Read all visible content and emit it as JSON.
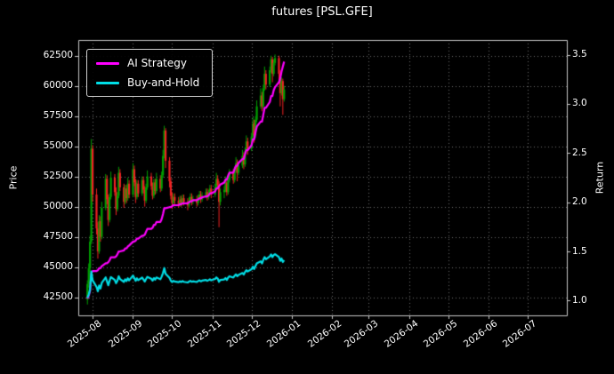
{
  "chart_data": {
    "type": "candlestick",
    "title": "futures [PSL.GFE]",
    "ylabel_left": "Price",
    "ylabel_right": "Return",
    "grid": true,
    "legend_position": "upper-left",
    "colors": {
      "background": "#000000",
      "text": "#ffffff",
      "grid": "#7a7a7a",
      "frame": "#c8c8c8",
      "up": "#00a000",
      "down": "#ee2222",
      "strategy": "#ff00ff",
      "buyhold": "#00dde5"
    },
    "price_ticks": [
      42500,
      45000,
      47500,
      50000,
      52500,
      55000,
      57500,
      60000,
      62500
    ],
    "price_range": [
      41000,
      63800
    ],
    "return_ticks": [
      "1.0",
      "1.5",
      "2.0",
      "2.5",
      "3.0",
      "3.5"
    ],
    "return_range": [
      0.85,
      3.65
    ],
    "x_tick_labels": [
      "2025-08",
      "2025-09",
      "2025-10",
      "2025-11",
      "2025-12",
      "2026-01",
      "2026-02",
      "2026-03",
      "2026-04",
      "2026-05",
      "2026-06",
      "2026-07"
    ],
    "x_tick_days": [
      11,
      42,
      72,
      103,
      133,
      164,
      195,
      223,
      254,
      284,
      315,
      345
    ],
    "x_range": [
      0,
      375
    ],
    "day_zero_date": "2025-07-21",
    "days": [
      7,
      8,
      9,
      10,
      11,
      14,
      15,
      16,
      17,
      18,
      21,
      22,
      23,
      24,
      25,
      28,
      29,
      30,
      31,
      32,
      35,
      36,
      37,
      38,
      39,
      42,
      43,
      44,
      45,
      46,
      49,
      50,
      51,
      52,
      53,
      56,
      57,
      58,
      59,
      60,
      63,
      64,
      65,
      66,
      67,
      70,
      71,
      72,
      73,
      74,
      77,
      78,
      79,
      80,
      81,
      84,
      85,
      86,
      87,
      88,
      91,
      92,
      93,
      94,
      95,
      98,
      99,
      100,
      101,
      102,
      105,
      106,
      107,
      108,
      109,
      112,
      113,
      114,
      115,
      116,
      119,
      120,
      121,
      122,
      123,
      126,
      127,
      128,
      129,
      130,
      133,
      134,
      135,
      136,
      137,
      140,
      141,
      142,
      143,
      144,
      147,
      148,
      149,
      150,
      151,
      154,
      155,
      156,
      157,
      158
    ],
    "ohlc": [
      [
        42300,
        43900,
        41900,
        43600
      ],
      [
        43600,
        45300,
        43300,
        44900
      ],
      [
        44900,
        47600,
        44600,
        47100
      ],
      [
        47100,
        55600,
        46900,
        54800
      ],
      [
        54800,
        55100,
        50400,
        51000
      ],
      [
        51000,
        51500,
        47700,
        48200
      ],
      [
        48200,
        48700,
        45700,
        46300
      ],
      [
        46300,
        49300,
        46100,
        48800
      ],
      [
        48800,
        49200,
        47100,
        47500
      ],
      [
        47500,
        50400,
        47300,
        49900
      ],
      [
        49900,
        52700,
        49700,
        52300
      ],
      [
        52300,
        52600,
        50200,
        50600
      ],
      [
        50600,
        51000,
        48400,
        48900
      ],
      [
        48900,
        51100,
        48700,
        50800
      ],
      [
        50800,
        52900,
        50600,
        52400
      ],
      [
        52400,
        52700,
        50900,
        51200
      ],
      [
        51200,
        51600,
        49300,
        49800
      ],
      [
        49800,
        51200,
        49600,
        50900
      ],
      [
        50900,
        53300,
        50700,
        52800
      ],
      [
        52800,
        53100,
        51300,
        51600
      ],
      [
        51600,
        51900,
        49900,
        50400
      ],
      [
        50400,
        51800,
        50200,
        51500
      ],
      [
        51500,
        51800,
        50300,
        50700
      ],
      [
        50700,
        52400,
        50500,
        51900
      ],
      [
        51900,
        52200,
        50700,
        51000
      ],
      [
        51000,
        53600,
        50800,
        53100
      ],
      [
        53100,
        53400,
        51700,
        52000
      ],
      [
        52000,
        52300,
        50300,
        50800
      ],
      [
        50800,
        52200,
        50600,
        51900
      ],
      [
        51900,
        52200,
        50800,
        51100
      ],
      [
        51100,
        52500,
        50900,
        52200
      ],
      [
        52200,
        52500,
        51100,
        51400
      ],
      [
        51400,
        51700,
        50000,
        50500
      ],
      [
        50500,
        51900,
        50300,
        51600
      ],
      [
        51600,
        53000,
        51400,
        52500
      ],
      [
        52500,
        52800,
        51400,
        51700
      ],
      [
        51700,
        52000,
        50600,
        50900
      ],
      [
        50900,
        52300,
        50700,
        52000
      ],
      [
        52000,
        52300,
        51000,
        51300
      ],
      [
        51300,
        52800,
        51100,
        52300
      ],
      [
        52300,
        52600,
        51200,
        51500
      ],
      [
        51500,
        52900,
        51300,
        52600
      ],
      [
        52600,
        54700,
        52400,
        54200
      ],
      [
        54200,
        56700,
        54000,
        56300
      ],
      [
        56300,
        56500,
        53200,
        53800
      ],
      [
        53800,
        54100,
        51600,
        52100
      ],
      [
        52100,
        52400,
        50600,
        50900
      ],
      [
        50900,
        51200,
        49800,
        50300
      ],
      [
        50300,
        51100,
        50100,
        50800
      ],
      [
        50800,
        51100,
        50200,
        50500
      ],
      [
        50500,
        50800,
        49900,
        50200
      ],
      [
        50200,
        50900,
        50000,
        50600
      ],
      [
        50600,
        50900,
        50000,
        50300
      ],
      [
        50300,
        51000,
        50100,
        50700
      ],
      [
        50700,
        51000,
        50100,
        50400
      ],
      [
        50400,
        50700,
        49700,
        50100
      ],
      [
        50100,
        50800,
        49900,
        50500
      ],
      [
        50500,
        51100,
        50300,
        50800
      ],
      [
        50800,
        51100,
        50100,
        50400
      ],
      [
        50400,
        50900,
        50200,
        50600
      ],
      [
        50600,
        50900,
        50000,
        50300
      ],
      [
        50300,
        51000,
        50100,
        50700
      ],
      [
        50700,
        51300,
        50500,
        51000
      ],
      [
        51000,
        51300,
        50300,
        50600
      ],
      [
        50600,
        51200,
        50400,
        50900
      ],
      [
        50900,
        51500,
        50700,
        51200
      ],
      [
        51200,
        51500,
        50500,
        50800
      ],
      [
        50800,
        51400,
        50600,
        51100
      ],
      [
        51100,
        51800,
        50900,
        51500
      ],
      [
        51500,
        51800,
        50700,
        51000
      ],
      [
        51000,
        51900,
        50800,
        51600
      ],
      [
        51600,
        52800,
        51400,
        52300
      ],
      [
        52300,
        52600,
        51500,
        51800
      ],
      [
        51800,
        52100,
        48300,
        50400
      ],
      [
        50400,
        51500,
        50100,
        51200
      ],
      [
        51200,
        51700,
        50700,
        51400
      ],
      [
        51400,
        52500,
        51200,
        52000
      ],
      [
        52000,
        52300,
        50900,
        51200
      ],
      [
        51200,
        52500,
        51000,
        52200
      ],
      [
        52200,
        53100,
        52000,
        52800
      ],
      [
        52800,
        53100,
        51900,
        52200
      ],
      [
        52200,
        53300,
        52000,
        53000
      ],
      [
        53000,
        54100,
        52800,
        53600
      ],
      [
        53600,
        53900,
        52100,
        52800
      ],
      [
        52800,
        53700,
        52600,
        53400
      ],
      [
        53400,
        54700,
        53200,
        54200
      ],
      [
        54200,
        54500,
        53100,
        53500
      ],
      [
        53500,
        54900,
        53300,
        54600
      ],
      [
        54600,
        55900,
        54400,
        55400
      ],
      [
        55400,
        55700,
        54300,
        54800
      ],
      [
        54800,
        56100,
        54600,
        55800
      ],
      [
        55800,
        57400,
        55600,
        56900
      ],
      [
        56900,
        57200,
        55300,
        55900
      ],
      [
        55900,
        57500,
        55700,
        57200
      ],
      [
        57200,
        58800,
        57000,
        58300
      ],
      [
        58300,
        59800,
        58100,
        59200
      ],
      [
        59200,
        59500,
        57900,
        58300
      ],
      [
        58300,
        60100,
        58100,
        59800
      ],
      [
        59800,
        61600,
        59600,
        61000
      ],
      [
        61000,
        61300,
        59700,
        60100
      ],
      [
        60100,
        61600,
        59900,
        61300
      ],
      [
        61300,
        62500,
        61100,
        62200
      ],
      [
        62200,
        62400,
        60300,
        61000
      ],
      [
        61000,
        62200,
        60800,
        61900
      ],
      [
        61900,
        62600,
        61700,
        62300
      ],
      [
        62300,
        62500,
        60200,
        61000
      ],
      [
        61000,
        61300,
        58300,
        59400
      ],
      [
        59400,
        60700,
        59200,
        60400
      ],
      [
        60400,
        60600,
        57600,
        58900
      ],
      [
        58900,
        60000,
        58700,
        59700
      ]
    ],
    "series": [
      {
        "name": "AI Strategy",
        "axis": "return",
        "color": "#ff00ff",
        "values": [
          1.02,
          1.05,
          1.1,
          1.28,
          1.3,
          1.3,
          1.31,
          1.33,
          1.33,
          1.35,
          1.38,
          1.38,
          1.39,
          1.41,
          1.44,
          1.44,
          1.45,
          1.47,
          1.5,
          1.5,
          1.51,
          1.53,
          1.53,
          1.55,
          1.56,
          1.6,
          1.6,
          1.61,
          1.63,
          1.63,
          1.66,
          1.66,
          1.67,
          1.7,
          1.73,
          1.73,
          1.74,
          1.77,
          1.77,
          1.8,
          1.8,
          1.83,
          1.88,
          1.94,
          1.94,
          1.95,
          1.95,
          1.96,
          1.97,
          1.97,
          1.97,
          1.98,
          1.98,
          1.99,
          1.99,
          1.99,
          2.0,
          2.01,
          2.01,
          2.02,
          2.02,
          2.03,
          2.04,
          2.04,
          2.05,
          2.06,
          2.06,
          2.07,
          2.09,
          2.09,
          2.11,
          2.14,
          2.14,
          2.16,
          2.18,
          2.2,
          2.23,
          2.23,
          2.27,
          2.3,
          2.3,
          2.34,
          2.37,
          2.37,
          2.4,
          2.44,
          2.44,
          2.49,
          2.53,
          2.53,
          2.58,
          2.64,
          2.64,
          2.71,
          2.77,
          2.82,
          2.82,
          2.89,
          2.96,
          2.96,
          3.02,
          3.08,
          3.08,
          3.14,
          3.17,
          3.22,
          3.26,
          3.33,
          3.38,
          3.43
        ]
      },
      {
        "name": "Buy-and-Hold",
        "axis": "return",
        "color": "#00dde5",
        "values": [
          1.031,
          1.061,
          1.113,
          1.296,
          1.206,
          1.139,
          1.095,
          1.154,
          1.123,
          1.18,
          1.236,
          1.196,
          1.156,
          1.201,
          1.239,
          1.21,
          1.177,
          1.203,
          1.248,
          1.22,
          1.191,
          1.217,
          1.199,
          1.227,
          1.206,
          1.255,
          1.229,
          1.201,
          1.227,
          1.208,
          1.234,
          1.215,
          1.194,
          1.22,
          1.241,
          1.222,
          1.203,
          1.229,
          1.213,
          1.236,
          1.217,
          1.244,
          1.281,
          1.331,
          1.272,
          1.232,
          1.203,
          1.189,
          1.201,
          1.194,
          1.187,
          1.196,
          1.189,
          1.199,
          1.191,
          1.184,
          1.194,
          1.201,
          1.191,
          1.196,
          1.189,
          1.199,
          1.206,
          1.196,
          1.203,
          1.21,
          1.201,
          1.208,
          1.217,
          1.206,
          1.22,
          1.236,
          1.225,
          1.191,
          1.21,
          1.215,
          1.229,
          1.21,
          1.234,
          1.248,
          1.234,
          1.253,
          1.267,
          1.248,
          1.262,
          1.281,
          1.265,
          1.291,
          1.31,
          1.296,
          1.319,
          1.345,
          1.321,
          1.352,
          1.378,
          1.4,
          1.378,
          1.414,
          1.442,
          1.421,
          1.449,
          1.47,
          1.442,
          1.463,
          1.473,
          1.442,
          1.404,
          1.428,
          1.392,
          1.411
        ]
      }
    ]
  }
}
